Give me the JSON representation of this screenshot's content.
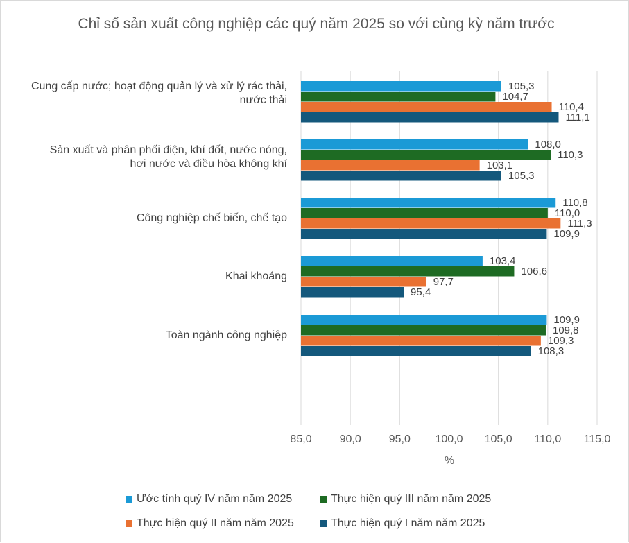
{
  "chart_data": {
    "type": "bar",
    "orientation": "horizontal",
    "title": "Chỉ số sản xuất công nghiệp các quý năm 2025 so với cùng kỳ năm trước",
    "xlabel": "%",
    "ylabel": "",
    "xlim": [
      85,
      115
    ],
    "xticks": [
      "85,0",
      "90,0",
      "95,0",
      "100,0",
      "105,0",
      "110,0",
      "115,0"
    ],
    "categories": [
      "Cung cấp nước; hoạt động quản lý và xử lý rác thải,\nnước thải",
      "Sản xuất và phân phối điện, khí đốt, nước nóng,\nhơi nước và điều hòa không khí",
      "Công nghiệp chế biến, chế tạo",
      "Khai khoáng",
      "Toàn ngành công nghiệp"
    ],
    "series": [
      {
        "name": "Ước tính  quý IV năm năm 2025",
        "color": "#1B9AD6",
        "values": [
          105.3,
          108.0,
          110.8,
          103.4,
          109.9
        ],
        "labels": [
          "105,3",
          "108,0",
          "110,8",
          "103,4",
          "109,9"
        ]
      },
      {
        "name": "Thực hiện  quý III năm năm 2025",
        "color": "#1E6B23",
        "values": [
          104.7,
          110.3,
          110.0,
          106.6,
          109.8
        ],
        "labels": [
          "104,7",
          "110,3",
          "110,0",
          "106,6",
          "109,8"
        ]
      },
      {
        "name": "Thực hiện  quý II năm năm 2025",
        "color": "#E97132",
        "values": [
          110.4,
          103.1,
          111.3,
          97.7,
          109.3
        ],
        "labels": [
          "110,4",
          "103,1",
          "111,3",
          "97,7",
          "109,3"
        ]
      },
      {
        "name": "Thực hiện  quý I năm năm 2025",
        "color": "#14587C",
        "values": [
          111.1,
          105.3,
          109.9,
          95.4,
          108.3
        ],
        "labels": [
          "111,1",
          "105,3",
          "109,9",
          "95,4",
          "108,3"
        ]
      }
    ],
    "grid": true,
    "legend": "bottom"
  }
}
